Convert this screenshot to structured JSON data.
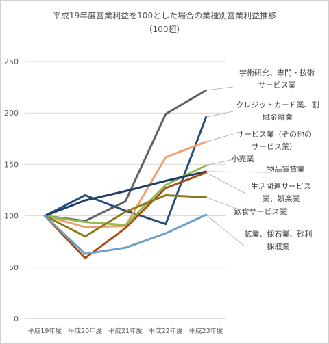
{
  "chart_data": {
    "type": "line",
    "title": "平成19年度営業利益を100とした場合の業種別営業利益推移",
    "subtitle": "（100超）",
    "xlabel": "",
    "ylabel": "",
    "ylim": [
      0,
      250
    ],
    "yticks": [
      0,
      50,
      100,
      150,
      200,
      250
    ],
    "grid": true,
    "legend": "right, labels next to line ends",
    "categories": [
      "平成19年度",
      "平成20年度",
      "平成21年度",
      "平成22年度",
      "平成23年度"
    ],
    "series": [
      {
        "name": "学術研究、専門・技術サービス業",
        "color": "#5f5f5f",
        "values": [
          100,
          95,
          114,
          199,
          222
        ]
      },
      {
        "name": "クレジットカード業、割賦金融業",
        "color": "#244f7a",
        "values": [
          100,
          120,
          105,
          92,
          196
        ]
      },
      {
        "name": "サービス業（その他のサービス業）",
        "color": "#f0a070",
        "values": [
          100,
          89,
          90,
          157,
          172
        ]
      },
      {
        "name": "小売業",
        "color": "#8fbd4c",
        "values": [
          100,
          94,
          91,
          130,
          149
        ]
      },
      {
        "name": "物品賃貸業",
        "color": "#1f3f68",
        "values": [
          100,
          115,
          124,
          134,
          143
        ]
      },
      {
        "name": "生活関連サービス業、娯楽業",
        "color": "#a84b14",
        "values": [
          100,
          59,
          88,
          127,
          142
        ]
      },
      {
        "name": "飲食サービス業",
        "color": "#8c7a1a",
        "values": [
          100,
          80,
          104,
          120,
          118
        ]
      },
      {
        "name": "鉱業、採石業、砂利採取業",
        "color": "#6a9fcc",
        "values": [
          100,
          63,
          69,
          83,
          101
        ]
      }
    ],
    "labels": [
      {
        "series": 0,
        "lines": [
          "学術研究、専門・技術",
          "サービス業"
        ]
      },
      {
        "series": 1,
        "lines": [
          "クレジットカード業、割",
          "賦金融業"
        ]
      },
      {
        "series": 2,
        "lines": [
          "サービス業（その他の",
          "サービス業）"
        ]
      },
      {
        "series": 3,
        "lines": [
          "小売業"
        ]
      },
      {
        "series": 4,
        "lines": [
          "物品賃貸業"
        ]
      },
      {
        "series": 5,
        "lines": [
          "生活関連サービス",
          "業、娯楽業"
        ]
      },
      {
        "series": 6,
        "lines": [
          "飲食サービス業"
        ]
      },
      {
        "series": 7,
        "lines": [
          "鉱業、採石業、砂利",
          "採取業"
        ]
      }
    ]
  }
}
